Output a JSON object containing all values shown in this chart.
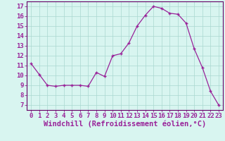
{
  "x": [
    0,
    1,
    2,
    3,
    4,
    5,
    6,
    7,
    8,
    9,
    10,
    11,
    12,
    13,
    14,
    15,
    16,
    17,
    18,
    19,
    20,
    21,
    22,
    23
  ],
  "y": [
    11.2,
    10.1,
    9.0,
    8.9,
    9.0,
    9.0,
    9.0,
    8.9,
    10.3,
    9.9,
    12.0,
    12.2,
    13.3,
    15.0,
    16.1,
    17.0,
    16.8,
    16.3,
    16.2,
    15.3,
    12.7,
    10.8,
    8.4,
    7.0
  ],
  "line_color": "#992299",
  "marker": "+",
  "bg_color": "#d8f5f0",
  "grid_color": "#aad8d0",
  "axis_color": "#660066",
  "xlabel": "Windchill (Refroidissement éolien,°C)",
  "ylabel_ticks": [
    7,
    8,
    9,
    10,
    11,
    12,
    13,
    14,
    15,
    16,
    17
  ],
  "ylim": [
    6.5,
    17.5
  ],
  "xlim": [
    -0.5,
    23.5
  ],
  "xlabel_color": "#992299",
  "tick_color": "#992299",
  "font_size": 6.5,
  "xlabel_fontsize": 7.5
}
